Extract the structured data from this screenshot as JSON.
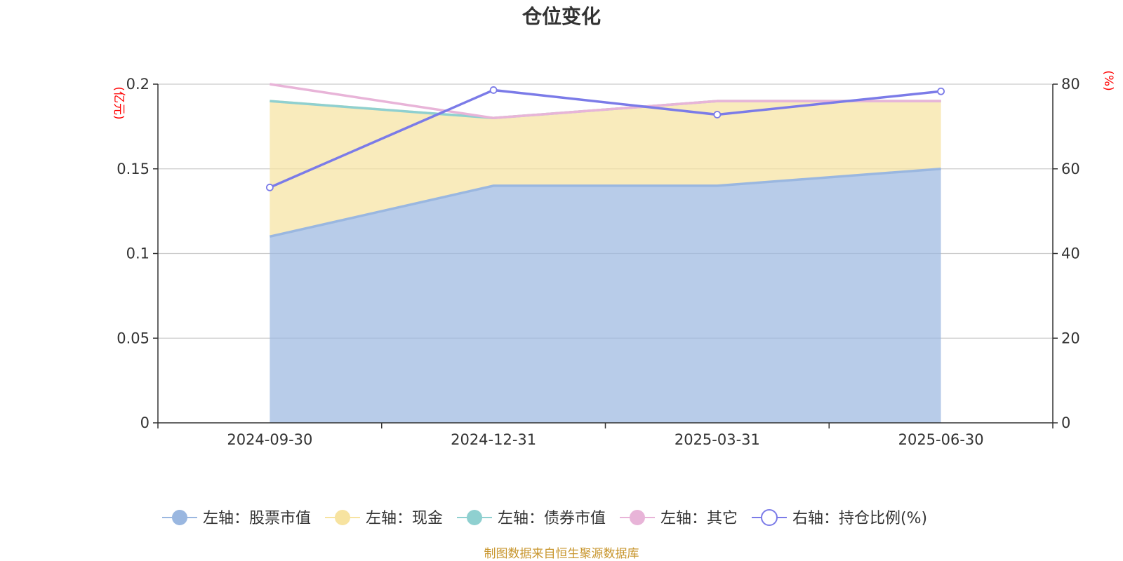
{
  "chart_data": {
    "type": "area",
    "title": "仓位变化",
    "categories": [
      "2024-09-30",
      "2024-12-31",
      "2025-03-31",
      "2025-06-30"
    ],
    "left_axis": {
      "unit": "(亿元)",
      "ylim": [
        0,
        0.2
      ],
      "ticks": [
        "0",
        "0.05",
        "0.1",
        "0.15",
        "0.2"
      ]
    },
    "right_axis": {
      "unit": "(%)",
      "ylim": [
        0,
        80
      ],
      "ticks": [
        "0",
        "20",
        "40",
        "60",
        "80"
      ]
    },
    "grid": true,
    "legend_position": "bottom",
    "series": [
      {
        "name": "左轴：股票市值",
        "axis": "left",
        "stack": true,
        "kind": "area",
        "color": "#9ab7e0",
        "values": [
          0.11,
          0.14,
          0.14,
          0.15
        ]
      },
      {
        "name": "左轴：现金",
        "axis": "left",
        "stack": true,
        "kind": "area",
        "color": "#f7e3a0",
        "values": [
          0.08,
          0.04,
          0.05,
          0.04
        ]
      },
      {
        "name": "左轴：债券市值",
        "axis": "left",
        "stack": true,
        "kind": "area",
        "color": "#8fd0d0",
        "values": [
          0,
          0,
          0,
          0
        ]
      },
      {
        "name": "左轴：其它",
        "axis": "left",
        "stack": true,
        "kind": "line",
        "color": "#e8b4d8",
        "values": [
          0.01,
          0,
          0,
          0
        ]
      },
      {
        "name": "右轴：持仓比例(%)",
        "axis": "right",
        "stack": false,
        "kind": "line",
        "color": "#7b7be8",
        "values": [
          55.6,
          78.6,
          72.8,
          78.3
        ]
      }
    ]
  },
  "source": "制图数据来自恒生聚源数据库"
}
